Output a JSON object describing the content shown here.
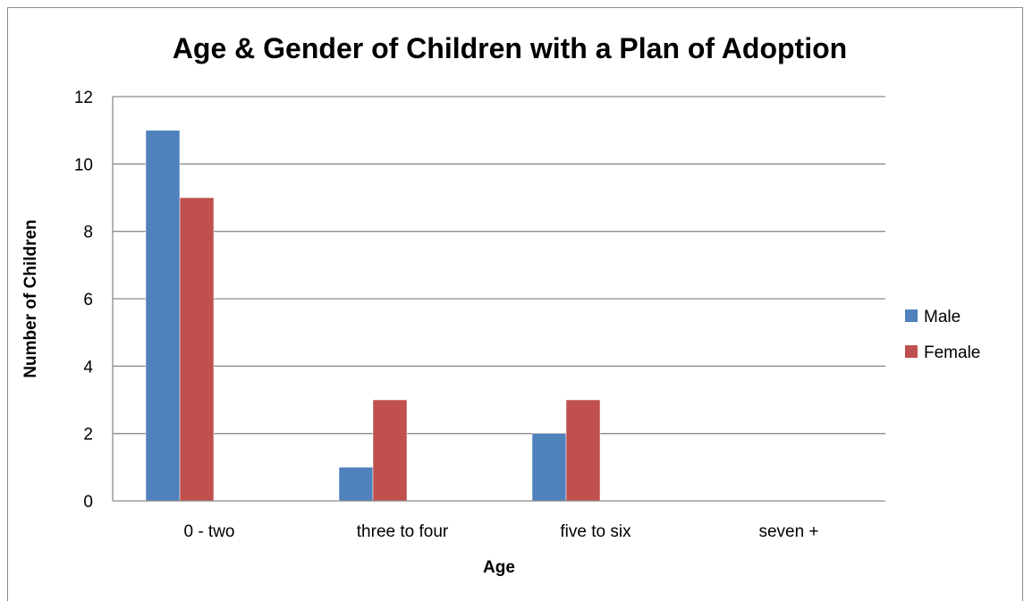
{
  "chart_data": {
    "type": "bar",
    "title": "Age & Gender of Children with a Plan of Adoption",
    "xlabel": "Age",
    "ylabel": "Number of Children",
    "categories": [
      "0 - two",
      "three to four",
      "five to six",
      "seven +"
    ],
    "series": [
      {
        "name": "Male",
        "values": [
          11,
          1,
          2,
          0
        ],
        "color": "#4f81bd"
      },
      {
        "name": "Female",
        "values": [
          9,
          3,
          3,
          0
        ],
        "color": "#c0504d"
      }
    ],
    "ylim": [
      0,
      12
    ],
    "yticks": [
      "0",
      "2",
      "4",
      "6",
      "8",
      "10",
      "12"
    ],
    "grid": true,
    "legend_position": "right"
  }
}
